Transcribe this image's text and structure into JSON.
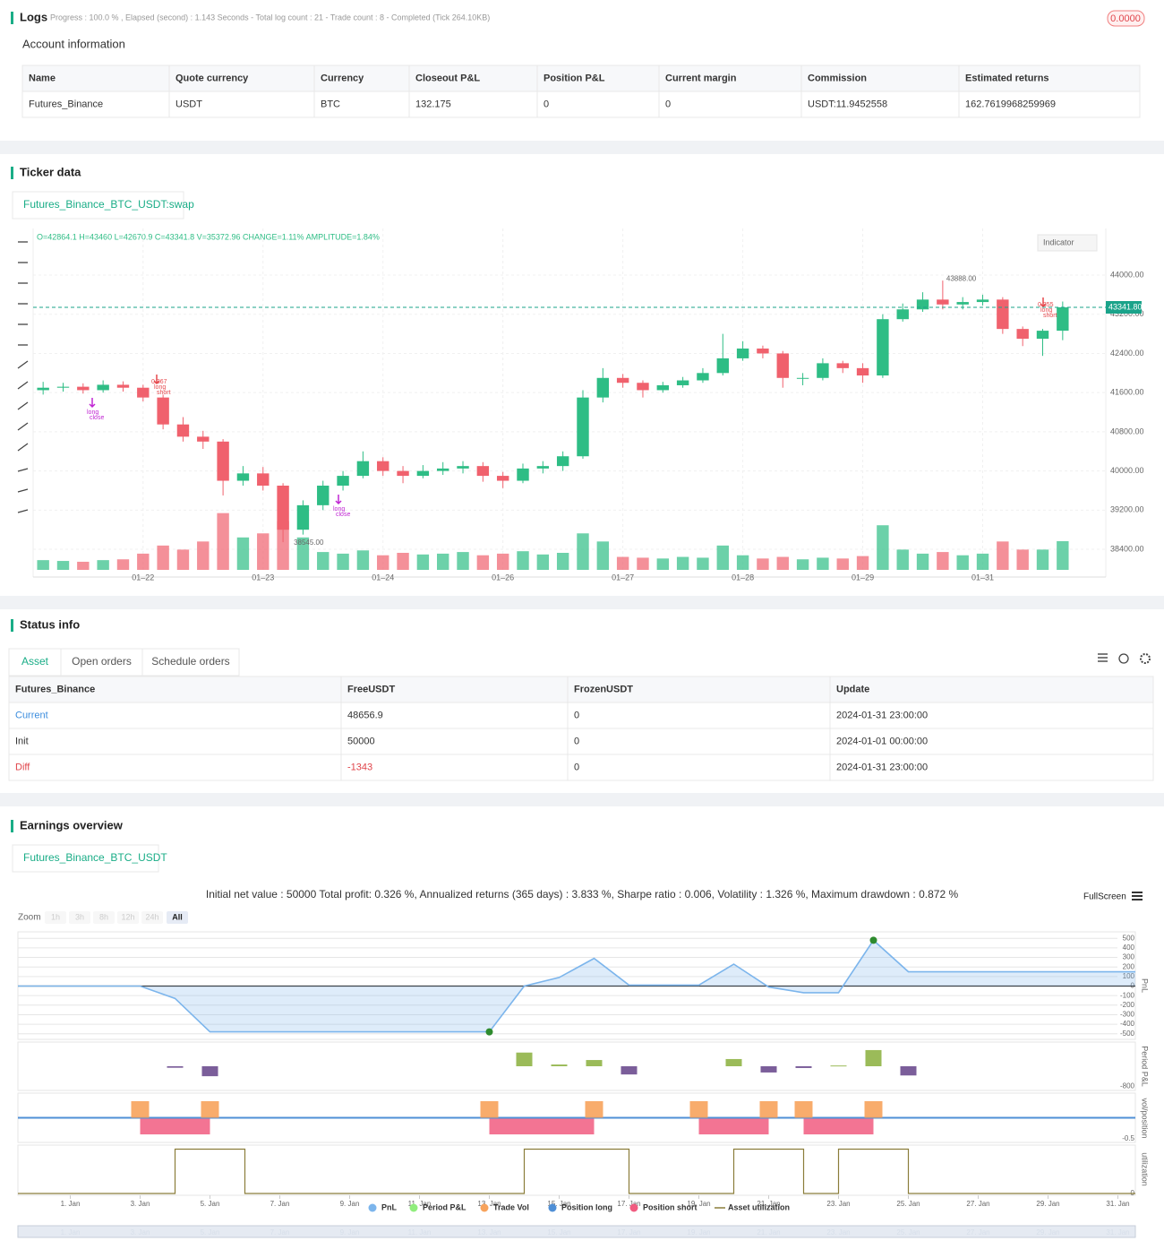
{
  "logs": {
    "title": "Logs",
    "status": "Progress : 100.0 % , Elapsed (second) : 1.143  Seconds - Total log count : 21 - Trade count : 8 - Completed (Tick 264.10KB)",
    "badge": "0.0000"
  },
  "account": {
    "title": "Account information",
    "headers": [
      "Name",
      "Quote currency",
      "Currency",
      "Closeout P&L",
      "Position P&L",
      "Current margin",
      "Commission",
      "Estimated returns"
    ],
    "rows": [
      [
        "Futures_Binance",
        "USDT",
        "BTC",
        "132.175",
        "0",
        "0",
        "USDT:11.9452558",
        "162.7619968259969"
      ]
    ]
  },
  "ticker": {
    "title": "Ticker data",
    "tab": "Futures_Binance_BTC_USDT:swap",
    "ohlc_text": "O=42864.1 H=43460 L=42670.9 C=43341.8 V=35372.96 CHANGE=1.11% AMPLITUDE=1.84%",
    "indicator_button": "Indicator",
    "trade_labels": [
      [
        "long",
        "close"
      ],
      [
        "0.367",
        "long",
        "short"
      ],
      [
        "long",
        "close"
      ],
      [
        "0.355",
        "long",
        "short"
      ]
    ],
    "chart_data": {
      "type": "candlestick",
      "categories": [
        null,
        null,
        null,
        null,
        null,
        "01–22",
        null,
        null,
        null,
        null,
        null,
        "01–23",
        null,
        null,
        null,
        null,
        null,
        "01–24",
        null,
        null,
        null,
        null,
        null,
        "01–26",
        null,
        null,
        null,
        null,
        null,
        "01–27",
        null,
        null,
        null,
        null,
        null,
        "01–28",
        null,
        null,
        null,
        null,
        null,
        "01–29",
        null,
        null,
        null,
        null,
        null,
        "01–31",
        null,
        null,
        null,
        null
      ],
      "open": [
        41650,
        41700,
        41720,
        41650,
        41760,
        41700,
        41500,
        40950,
        40700,
        40600,
        39800,
        39950,
        39700,
        38800,
        39300,
        39700,
        39900,
        40200,
        40000,
        39900,
        40000,
        40050,
        40100,
        39900,
        39800,
        40050,
        40100,
        40300,
        41500,
        41900,
        41800,
        41650,
        41750,
        41850,
        42000,
        42300,
        42500,
        42400,
        41900,
        41900,
        42200,
        42100,
        41950,
        43100,
        43300,
        43500,
        43400,
        43450,
        43500,
        42900,
        42700,
        42864.1
      ],
      "high": [
        41820,
        41800,
        41790,
        41850,
        41830,
        41760,
        41560,
        41100,
        40820,
        40650,
        40100,
        40080,
        39750,
        39400,
        39800,
        40000,
        40400,
        40280,
        40100,
        40120,
        40180,
        40200,
        40180,
        39980,
        40150,
        40200,
        40400,
        41650,
        42100,
        41980,
        41850,
        41820,
        41920,
        42100,
        42800,
        42650,
        42560,
        42450,
        42000,
        42300,
        42250,
        42200,
        43200,
        43420,
        43650,
        43888,
        43550,
        43600,
        43550,
        42950,
        42900,
        43460
      ],
      "low": [
        41560,
        41620,
        41580,
        41600,
        41620,
        41420,
        40850,
        40600,
        40450,
        39500,
        39700,
        39600,
        38545,
        38700,
        39200,
        39600,
        39850,
        39900,
        39750,
        39850,
        39920,
        39950,
        39780,
        39650,
        39750,
        39950,
        40000,
        40250,
        41400,
        41700,
        41500,
        41600,
        41700,
        41800,
        41950,
        42250,
        42300,
        41700,
        41750,
        41850,
        42000,
        41800,
        41900,
        43050,
        43250,
        43300,
        43300,
        43380,
        42800,
        42550,
        42350,
        42670.9
      ],
      "close": [
        41700,
        41720,
        41650,
        41760,
        41700,
        41500,
        40950,
        40700,
        40600,
        39800,
        39950,
        39700,
        38800,
        39300,
        39700,
        39900,
        40200,
        40000,
        39900,
        40000,
        40050,
        40100,
        39900,
        39800,
        40050,
        40100,
        40300,
        41500,
        41900,
        41800,
        41650,
        41750,
        41850,
        42000,
        42300,
        42500,
        42400,
        41900,
        41900,
        42200,
        42100,
        41950,
        43100,
        43300,
        43500,
        43400,
        43450,
        43500,
        42900,
        42700,
        42864.1,
        43341.8
      ],
      "volume": [
        12000,
        11000,
        10000,
        12000,
        13000,
        20000,
        30000,
        25000,
        35000,
        70000,
        40000,
        45000,
        60000,
        40000,
        22000,
        20000,
        24000,
        18000,
        21000,
        19000,
        20000,
        22000,
        18000,
        20000,
        23000,
        19000,
        21000,
        45000,
        35000,
        16000,
        15000,
        14000,
        16000,
        15000,
        30000,
        18000,
        14000,
        16000,
        13000,
        15000,
        14000,
        17000,
        55000,
        25000,
        20000,
        22000,
        18000,
        20000,
        35000,
        25000,
        25000,
        35372.96
      ],
      "ylim": [
        37980,
        44952
      ],
      "yticks": [
        {
          "value": 38400,
          "label": "38400.00"
        },
        {
          "value": 39200,
          "label": "39200.00"
        },
        {
          "value": 40000,
          "label": "40000.00"
        },
        {
          "value": 40800,
          "label": "40800.00"
        },
        {
          "value": 41600,
          "label": "41600.00"
        },
        {
          "value": 42400,
          "label": "42400.00"
        },
        {
          "value": 43200,
          "label": "43200.00"
        },
        {
          "value": 44000,
          "label": "44000.00"
        }
      ],
      "vol_ylim": [
        0,
        200000
      ],
      "last_price": {
        "value": 43341.8,
        "label": "43341.80"
      },
      "max_label": {
        "value": 43888,
        "label": "43888.00"
      },
      "min_label": {
        "value": 38545,
        "label": "38545.00"
      },
      "up_color": "#2ebd85",
      "down_color": "#f0616d",
      "grid": true
    }
  },
  "status": {
    "title": "Status info",
    "tabs": [
      "Asset",
      "Open orders",
      "Schedule orders"
    ],
    "headers": [
      "Futures_Binance",
      "FreeUSDT",
      "FrozenUSDT",
      "Update"
    ],
    "rows": [
      [
        "Current",
        "48656.9",
        "0",
        "2024-01-31 23:00:00"
      ],
      [
        "Init",
        "50000",
        "0",
        "2024-01-01 00:00:00"
      ],
      [
        "Diff",
        "-1343",
        "0",
        "2024-01-31 23:00:00"
      ]
    ]
  },
  "earnings": {
    "title": "Earnings overview",
    "tab": "Futures_Binance_BTC_USDT",
    "summary": "Initial net value : 50000 Total profit: 0.326 %, Annualized returns (365 days) : 3.833 %, Sharpe ratio : 0.006, Volatility : 1.326 %, Maximum drawdown : 0.872 %",
    "fullscreen": "FullScreen",
    "zoom_label": "Zoom",
    "zoom_buttons": [
      "1h",
      "3h",
      "8h",
      "12h",
      "24h",
      "All"
    ],
    "chart_data": {
      "type": "multi-panel",
      "xlim": [
        -0.5,
        31.5
      ],
      "xticks": [
        {
          "value": 1,
          "label": "1. Jan"
        },
        {
          "value": 3,
          "label": "3. Jan"
        },
        {
          "value": 5,
          "label": "5. Jan"
        },
        {
          "value": 7,
          "label": "7. Jan"
        },
        {
          "value": 9,
          "label": "9. Jan"
        },
        {
          "value": 11,
          "label": "11. Jan"
        },
        {
          "value": 13,
          "label": "13. Jan"
        },
        {
          "value": 15,
          "label": "15. Jan"
        },
        {
          "value": 17,
          "label": "17. Jan"
        },
        {
          "value": 19,
          "label": "19. Jan"
        },
        {
          "value": 21,
          "label": "21. Jan"
        },
        {
          "value": 23,
          "label": "23. Jan"
        },
        {
          "value": 25,
          "label": "25. Jan"
        },
        {
          "value": 27,
          "label": "27. Jan"
        },
        {
          "value": 29,
          "label": "29. Jan"
        },
        {
          "value": 31,
          "label": "31. Jan"
        }
      ],
      "series": [
        {
          "name": "PnL",
          "color": "#7cb5ec",
          "axis_title": "PnL",
          "ylim": [
            -540,
            540
          ],
          "yticks": [
            500,
            400,
            300,
            200,
            100,
            0,
            -100,
            -200,
            -300,
            -400,
            -500
          ],
          "x": [
            -0.5,
            3,
            4,
            5,
            6,
            13,
            14,
            15,
            16,
            17,
            19,
            20,
            21,
            22,
            23,
            24,
            25,
            31.5
          ],
          "values": [
            0,
            0,
            -130,
            -480,
            -480,
            -480,
            0,
            90,
            290,
            10,
            10,
            230,
            -10,
            -70,
            -70,
            480,
            150,
            150
          ]
        },
        {
          "name": "Period P&L",
          "color": "#90ed7d",
          "up_color": "#9bbb59",
          "down_color": "#7b5e9a",
          "axis_title": "Period P&L",
          "ylim": [
            -900,
            900
          ],
          "yticks": [
            -800
          ],
          "x": [
            4,
            5,
            14,
            15,
            16,
            17,
            20,
            21,
            22,
            23,
            24,
            25
          ],
          "values": [
            -60,
            -400,
            550,
            70,
            250,
            -330,
            290,
            -250,
            -70,
            30,
            650,
            -370
          ]
        },
        {
          "name": "Trade Vol",
          "color": "#f7a35c",
          "axis_title": "vol/position",
          "ylim": [
            -0.55,
            0.55
          ],
          "yticks": [
            -0.5
          ],
          "x": [
            3,
            5,
            13,
            16,
            19,
            21,
            22,
            24
          ],
          "values": [
            0.4,
            0.4,
            0.4,
            0.4,
            0.4,
            0.4,
            0.4,
            0.4
          ]
        },
        {
          "name": "Position long",
          "color": "#4f8fd6",
          "ylim": [
            -0.55,
            0.55
          ],
          "x": [
            -0.5,
            31.5
          ],
          "values": [
            0,
            0
          ]
        },
        {
          "name": "Position short",
          "color": "#f15c80",
          "ylim": [
            -0.55,
            0.55
          ],
          "x": [
            3,
            5,
            13,
            16,
            19,
            21,
            22,
            24
          ],
          "values": [
            -0.4,
            0,
            -0.4,
            0,
            -0.4,
            0,
            -0.4,
            0
          ]
        },
        {
          "name": "Asset utilization",
          "color": "#8b7d3a",
          "axis_title": "utilization",
          "ylim": [
            0,
            1.05
          ],
          "yticks": [
            0
          ],
          "x": [
            -0.5,
            4,
            6,
            14,
            17,
            20,
            22,
            23,
            25
          ],
          "values": [
            0,
            1,
            0,
            1,
            0,
            1,
            0,
            1,
            0
          ]
        }
      ]
    }
  }
}
